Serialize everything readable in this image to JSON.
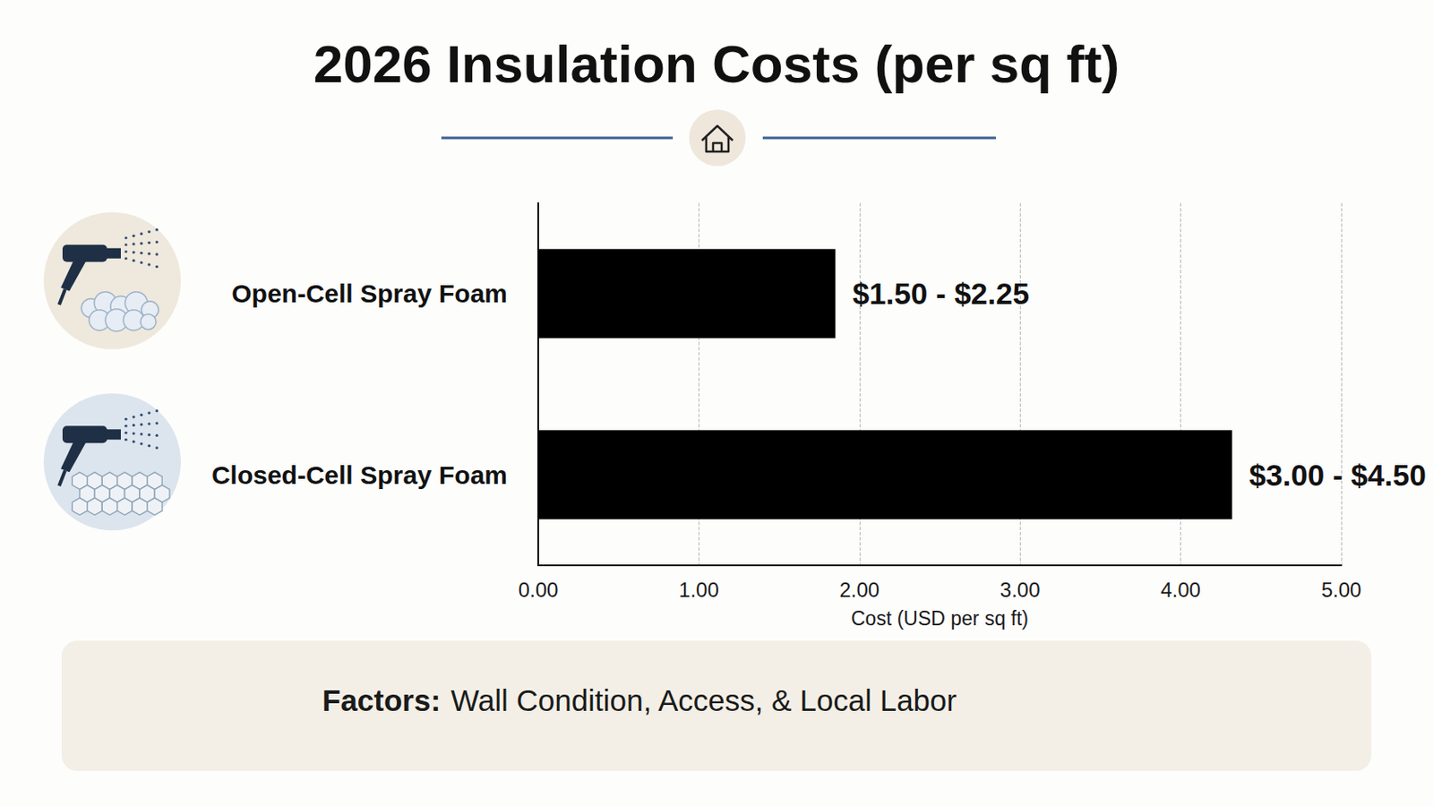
{
  "chart_data": {
    "type": "bar",
    "title": "2026 Insulation Costs (per sq ft)",
    "orientation": "horizontal",
    "categories": [
      "Open-Cell Spray Foam",
      "Closed-Cell Spray Foam"
    ],
    "values": [
      1.85,
      4.32
    ],
    "annotations": [
      "$1.50 - $2.25",
      "$3.00 - $4.50"
    ],
    "color": "#000000",
    "xlabel": "Cost (USD per sq ft)",
    "xlim": [
      0,
      5
    ],
    "xticks": [
      {
        "value": 0,
        "label": "0.00"
      },
      {
        "value": 1,
        "label": "1.00"
      },
      {
        "value": 2,
        "label": "2.00"
      },
      {
        "value": 3,
        "label": "3.00"
      },
      {
        "value": 4,
        "label": "4.00"
      },
      {
        "value": 5,
        "label": "5.00"
      }
    ],
    "grid": true
  },
  "footer": {
    "label": "Factors:",
    "text": "Wall Condition, Access, & Local Labor"
  }
}
